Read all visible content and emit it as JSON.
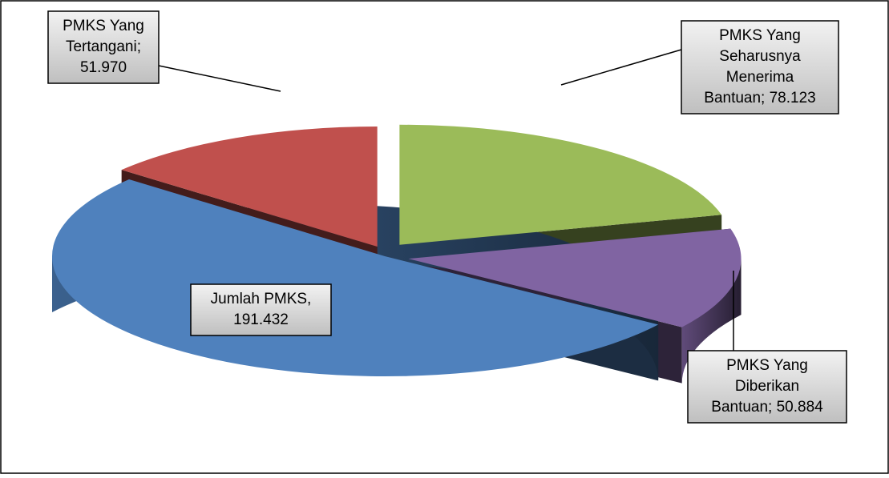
{
  "chart_data": {
    "type": "pie",
    "values": [
      78123,
      50884,
      191432,
      51970
    ],
    "value_labels": [
      [
        "PMKS Yang",
        "Seharusnya",
        "Menerima",
        "Bantuan; 78.123"
      ],
      [
        "PMKS Yang",
        "Diberikan",
        "Bantuan; 50.884"
      ],
      [
        "Jumlah PMKS,",
        "191.432"
      ],
      [
        "PMKS Yang",
        "Tertangani;",
        "51.970"
      ]
    ],
    "colors": [
      "#9bbb59",
      "#8064a2",
      "#4f81bd",
      "#c0504d"
    ]
  }
}
